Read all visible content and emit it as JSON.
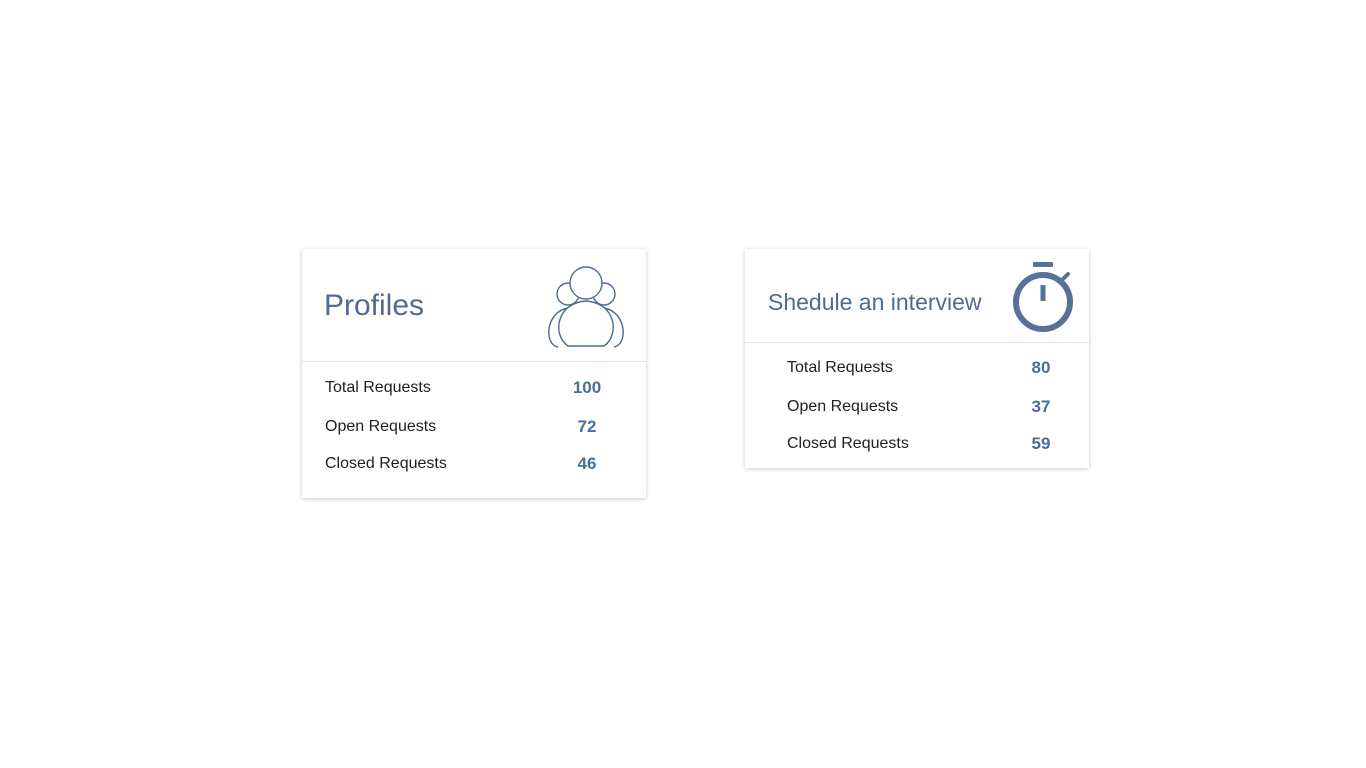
{
  "colors": {
    "accent": "#4f6b92",
    "value": "#4a6e98",
    "label": "#1f1f1f"
  },
  "cards": [
    {
      "title": "Profiles",
      "icon": "users-group-icon",
      "stats": [
        {
          "label": "Total Requests",
          "value": "100"
        },
        {
          "label": "Open Requests",
          "value": "72"
        },
        {
          "label": "Closed Requests",
          "value": "46"
        }
      ]
    },
    {
      "title": "Shedule an interview",
      "icon": "stopwatch-icon",
      "stats": [
        {
          "label": "Total Requests",
          "value": "80"
        },
        {
          "label": "Open Requests",
          "value": "37"
        },
        {
          "label": "Closed Requests",
          "value": "59"
        }
      ]
    }
  ]
}
